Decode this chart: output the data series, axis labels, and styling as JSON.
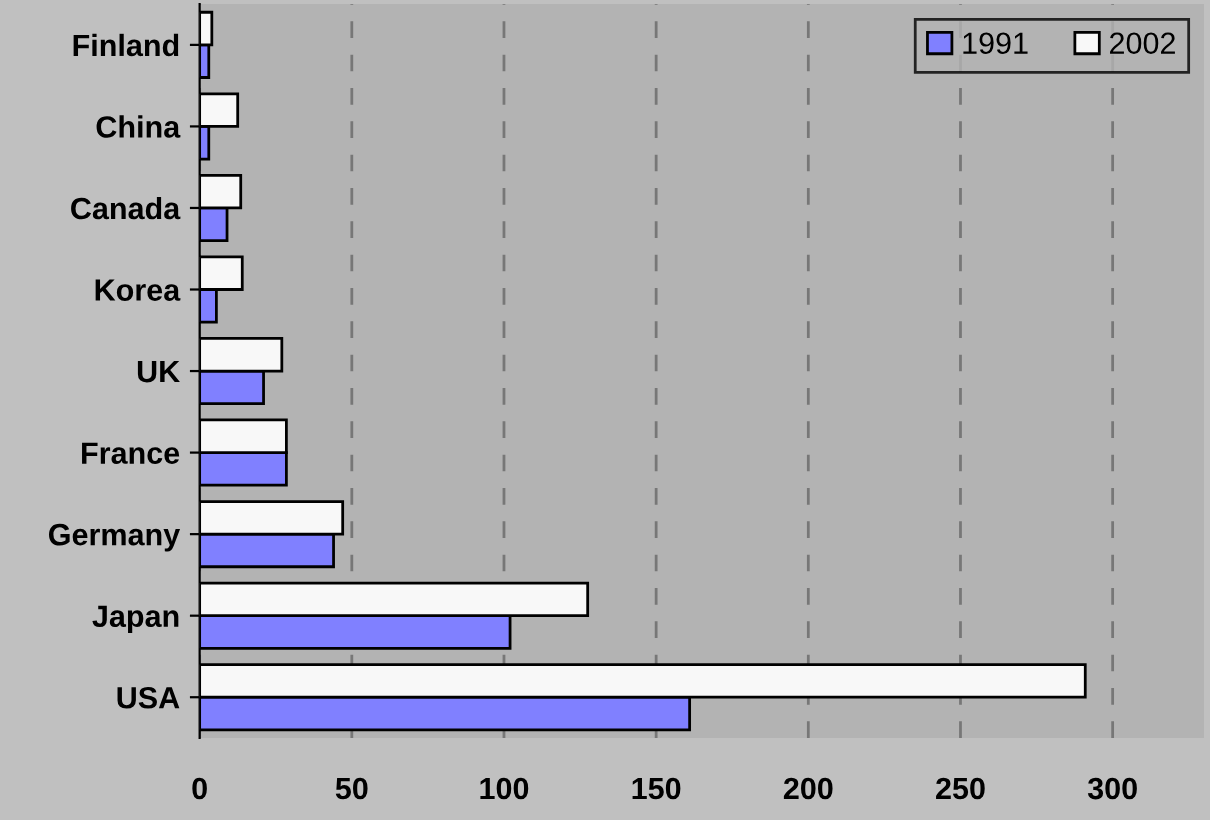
{
  "chart_data": {
    "type": "bar",
    "orientation": "horizontal",
    "categories": [
      "Finland",
      "China",
      "Canada",
      "Korea",
      "UK",
      "France",
      "Germany",
      "Japan",
      "USA"
    ],
    "series": [
      {
        "name": "1991",
        "color": "#8080ff",
        "values": [
          3,
          3,
          9,
          5.5,
          21,
          28.5,
          44,
          102,
          161
        ]
      },
      {
        "name": "2002",
        "color": "#f8f8f8",
        "values": [
          4,
          12.5,
          13.5,
          14,
          27,
          28.5,
          47,
          127.5,
          291
        ]
      }
    ],
    "xlim": [
      0,
      330
    ],
    "xticks": [
      0,
      50,
      100,
      150,
      200,
      250,
      300
    ],
    "grid": "x",
    "legend": "top right"
  }
}
